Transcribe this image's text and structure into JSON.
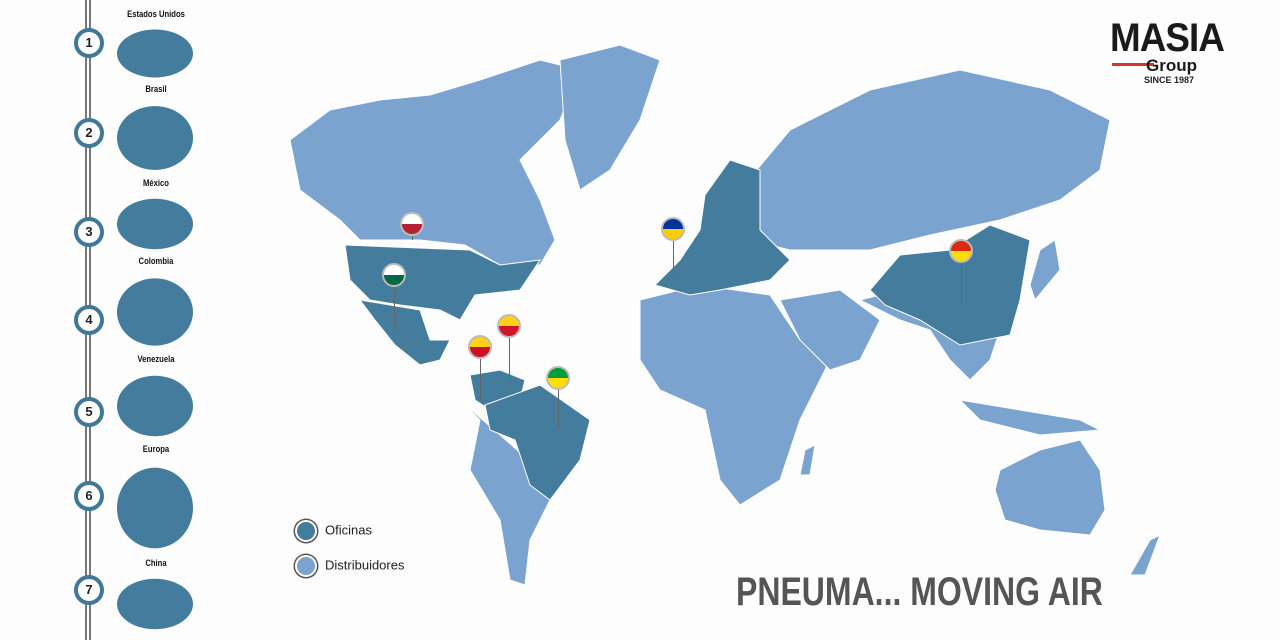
{
  "sidebar": {
    "items": [
      {
        "number": "1",
        "label": "Estados Unidos"
      },
      {
        "number": "2",
        "label": "Brasil"
      },
      {
        "number": "3",
        "label": "México"
      },
      {
        "number": "4",
        "label": "Colombia"
      },
      {
        "number": "5",
        "label": "Venezuela"
      },
      {
        "number": "6",
        "label": "Europa"
      },
      {
        "number": "7",
        "label": "China"
      }
    ]
  },
  "logo": {
    "name": "MASIA",
    "sub": "Group",
    "since": "SINCE 1987"
  },
  "legend": {
    "offices": "Oficinas",
    "distributors": "Distribuidores"
  },
  "tagline": "PNEUMA... MOVING AIR",
  "colors": {
    "offices": "#437c9c",
    "distributors": "#7ba3d0",
    "accent": "#d9342b"
  },
  "pins": [
    "usa-flag",
    "mexico-flag",
    "colombia-flag",
    "venezuela-flag",
    "brazil-flag",
    "eu-flag",
    "china-flag"
  ]
}
